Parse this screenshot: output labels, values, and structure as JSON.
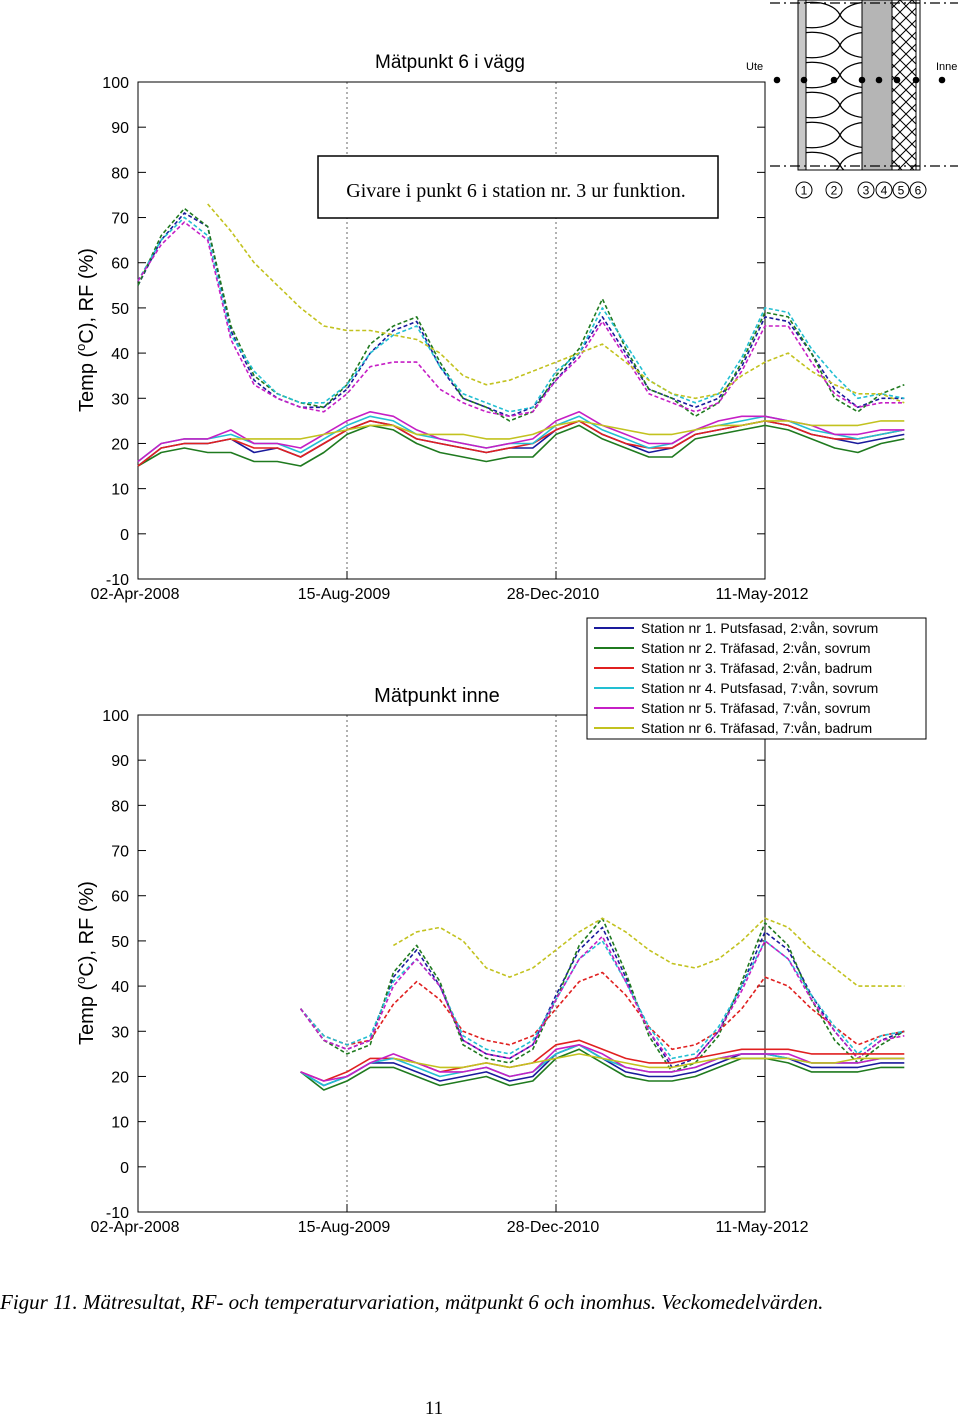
{
  "chart_data": [
    {
      "type": "line",
      "title": "Mätpunkt 6 i vägg",
      "ylabel": "Temp (oC), RF (%)",
      "ylabel_base": "Temp (",
      "ylabel_sup": "o",
      "ylabel_rest": "C), RF (%)",
      "ylim": [
        -10,
        100
      ],
      "yticks": [
        -10,
        0,
        10,
        20,
        30,
        40,
        50,
        60,
        70,
        80,
        90,
        100
      ],
      "xticks": [
        "02-Apr-2008",
        "15-Aug-2009",
        "28-Dec-2010",
        "11-May-2012"
      ],
      "annotation": "Givare i punkt 6 i station nr. 3 ur funktion.",
      "x_weeks": [
        0,
        8,
        16,
        24,
        32,
        40,
        48,
        56,
        64,
        72,
        80,
        88,
        96,
        104,
        112,
        120,
        128,
        136,
        144,
        152,
        160,
        168,
        176,
        184,
        192,
        200,
        208,
        216,
        224,
        232,
        240,
        248,
        256,
        264
      ],
      "series": [
        {
          "name": "Station nr 1 RF",
          "station": 1,
          "style": "dashed",
          "values": [
            55,
            65,
            71,
            68,
            45,
            34,
            30,
            28,
            28,
            32,
            40,
            45,
            47,
            37,
            30,
            28,
            26,
            28,
            34,
            40,
            48,
            40,
            32,
            30,
            28,
            30,
            37,
            48,
            47,
            40,
            32,
            28,
            30,
            30
          ]
        },
        {
          "name": "Station nr 2 RF",
          "station": 2,
          "style": "dashed",
          "values": [
            55,
            66,
            72,
            68,
            46,
            35,
            31,
            29,
            28,
            33,
            42,
            46,
            48,
            38,
            30,
            28,
            25,
            27,
            35,
            41,
            52,
            41,
            32,
            30,
            26,
            29,
            38,
            49,
            48,
            40,
            30,
            27,
            31,
            33
          ]
        },
        {
          "name": "Station nr 4 RF",
          "station": 4,
          "style": "dashed",
          "values": [
            56,
            65,
            70,
            66,
            44,
            36,
            31,
            29,
            29,
            33,
            40,
            44,
            46,
            37,
            31,
            29,
            27,
            28,
            36,
            40,
            50,
            42,
            34,
            31,
            29,
            31,
            39,
            50,
            49,
            41,
            35,
            30,
            31,
            30
          ]
        },
        {
          "name": "Station nr 5 RF",
          "station": 5,
          "style": "dashed",
          "values": [
            56,
            64,
            69,
            65,
            43,
            33,
            30,
            28,
            27,
            31,
            37,
            38,
            38,
            32,
            29,
            27,
            26,
            27,
            34,
            39,
            47,
            39,
            31,
            29,
            27,
            29,
            36,
            46,
            46,
            38,
            31,
            28,
            29,
            29
          ]
        },
        {
          "name": "Station nr 6 RF",
          "station": 6,
          "style": "dashed",
          "values": [
            null,
            null,
            null,
            73,
            67,
            60,
            55,
            50,
            46,
            45,
            45,
            44,
            43,
            40,
            35,
            33,
            34,
            36,
            38,
            40,
            42,
            38,
            34,
            31,
            30,
            31,
            35,
            38,
            40,
            36,
            33,
            31,
            31,
            29
          ]
        },
        {
          "name": "Station nr 1 temp",
          "station": 1,
          "style": "solid",
          "values": [
            15,
            19,
            20,
            20,
            21,
            18,
            19,
            17,
            20,
            23,
            25,
            24,
            21,
            20,
            19,
            18,
            19,
            19,
            23,
            25,
            22,
            20,
            18,
            19,
            22,
            23,
            24,
            25,
            24,
            22,
            21,
            20,
            21,
            22
          ]
        },
        {
          "name": "Station nr 2 temp",
          "station": 2,
          "style": "solid",
          "values": [
            15,
            18,
            19,
            18,
            18,
            16,
            16,
            15,
            18,
            22,
            24,
            23,
            20,
            18,
            17,
            16,
            17,
            17,
            22,
            24,
            21,
            19,
            17,
            17,
            21,
            22,
            23,
            24,
            23,
            21,
            19,
            18,
            20,
            21
          ]
        },
        {
          "name": "Station nr 3 temp",
          "station": 3,
          "style": "solid",
          "values": [
            15,
            19,
            20,
            20,
            21,
            19,
            19,
            17,
            20,
            23,
            25,
            24,
            21,
            20,
            19,
            18,
            19,
            20,
            23,
            25,
            22,
            20,
            19,
            19,
            22,
            23,
            24,
            25,
            24,
            22,
            21,
            21,
            22,
            23
          ]
        },
        {
          "name": "Station nr 4 temp",
          "station": 4,
          "style": "solid",
          "values": [
            16,
            20,
            21,
            21,
            22,
            20,
            20,
            18,
            21,
            24,
            26,
            25,
            22,
            21,
            20,
            19,
            20,
            20,
            24,
            26,
            23,
            21,
            19,
            20,
            23,
            24,
            25,
            26,
            25,
            23,
            22,
            21,
            22,
            23
          ]
        },
        {
          "name": "Station nr 5 temp",
          "station": 5,
          "style": "solid",
          "values": [
            16,
            20,
            21,
            21,
            23,
            20,
            20,
            19,
            22,
            25,
            27,
            26,
            23,
            21,
            20,
            19,
            20,
            21,
            25,
            27,
            24,
            22,
            20,
            20,
            23,
            25,
            26,
            26,
            25,
            24,
            22,
            22,
            23,
            23
          ]
        },
        {
          "name": "Station nr 6 temp",
          "station": 6,
          "style": "solid",
          "values": [
            null,
            null,
            null,
            null,
            21,
            21,
            21,
            21,
            22,
            23,
            24,
            24,
            22,
            22,
            22,
            21,
            21,
            22,
            24,
            25,
            24,
            23,
            22,
            22,
            23,
            24,
            24,
            25,
            25,
            24,
            24,
            24,
            25,
            25
          ]
        }
      ]
    },
    {
      "type": "line",
      "title": "Mätpunkt inne",
      "ylabel": "Temp (oC), RF (%)",
      "ylabel_base": "Temp (",
      "ylabel_sup": "o",
      "ylabel_rest": "C), RF (%)",
      "ylim": [
        -10,
        100
      ],
      "yticks": [
        -10,
        0,
        10,
        20,
        30,
        40,
        50,
        60,
        70,
        80,
        90,
        100
      ],
      "xticks": [
        "02-Apr-2008",
        "15-Aug-2009",
        "28-Dec-2010",
        "11-May-2012"
      ],
      "x_weeks": [
        56,
        64,
        72,
        80,
        88,
        96,
        104,
        112,
        120,
        128,
        136,
        144,
        152,
        160,
        168,
        176,
        184,
        192,
        200,
        208,
        216,
        224,
        232,
        240,
        248,
        256,
        264
      ],
      "series": [
        {
          "name": "Station nr 1 RF",
          "station": 1,
          "style": "dashed",
          "values": [
            35,
            28,
            26,
            28,
            42,
            48,
            40,
            28,
            25,
            24,
            27,
            38,
            48,
            53,
            42,
            30,
            22,
            24,
            30,
            40,
            52,
            48,
            38,
            30,
            24,
            28,
            30
          ]
        },
        {
          "name": "Station nr 2 RF",
          "station": 2,
          "style": "dashed",
          "values": [
            35,
            28,
            25,
            27,
            43,
            49,
            41,
            27,
            24,
            23,
            26,
            37,
            49,
            55,
            43,
            29,
            21,
            23,
            29,
            41,
            54,
            49,
            37,
            28,
            23,
            27,
            30
          ]
        },
        {
          "name": "Station nr 3 RF",
          "station": 3,
          "style": "dashed",
          "values": [
            35,
            29,
            27,
            28,
            36,
            41,
            37,
            30,
            28,
            27,
            29,
            35,
            41,
            43,
            38,
            31,
            26,
            27,
            30,
            35,
            42,
            40,
            35,
            31,
            27,
            29,
            30
          ]
        },
        {
          "name": "Station nr 4 RF",
          "station": 4,
          "style": "dashed",
          "values": [
            35,
            29,
            27,
            29,
            41,
            46,
            40,
            29,
            26,
            25,
            28,
            37,
            46,
            50,
            41,
            31,
            24,
            25,
            31,
            40,
            50,
            46,
            38,
            31,
            25,
            29,
            30
          ]
        },
        {
          "name": "Station nr 5 RF",
          "station": 5,
          "style": "dashed",
          "values": [
            35,
            28,
            26,
            28,
            40,
            46,
            40,
            28,
            25,
            24,
            27,
            37,
            46,
            51,
            41,
            30,
            23,
            24,
            30,
            39,
            50,
            46,
            37,
            30,
            24,
            28,
            29
          ]
        },
        {
          "name": "Station nr 6 RF",
          "station": 6,
          "style": "dashed",
          "values": [
            null,
            null,
            null,
            null,
            49,
            52,
            53,
            50,
            44,
            42,
            44,
            48,
            52,
            55,
            52,
            48,
            45,
            44,
            46,
            50,
            55,
            53,
            48,
            44,
            40,
            40,
            40
          ]
        },
        {
          "name": "Station nr 1 temp",
          "station": 1,
          "style": "solid",
          "values": [
            21,
            18,
            20,
            23,
            23,
            21,
            19,
            20,
            21,
            19,
            20,
            25,
            27,
            24,
            21,
            20,
            20,
            21,
            23,
            25,
            25,
            24,
            22,
            22,
            22,
            23,
            23
          ]
        },
        {
          "name": "Station nr 2 temp",
          "station": 2,
          "style": "solid",
          "values": [
            21,
            17,
            19,
            22,
            22,
            20,
            18,
            19,
            20,
            18,
            19,
            24,
            26,
            23,
            20,
            19,
            19,
            20,
            22,
            24,
            24,
            23,
            21,
            21,
            21,
            22,
            22
          ]
        },
        {
          "name": "Station nr 3 temp",
          "station": 3,
          "style": "solid",
          "values": [
            21,
            19,
            21,
            24,
            24,
            23,
            21,
            22,
            23,
            22,
            23,
            27,
            28,
            26,
            24,
            23,
            23,
            24,
            25,
            26,
            26,
            26,
            25,
            25,
            25,
            25,
            25
          ]
        },
        {
          "name": "Station nr 4 temp",
          "station": 4,
          "style": "solid",
          "values": [
            21,
            18,
            20,
            23,
            24,
            22,
            20,
            21,
            22,
            20,
            21,
            25,
            27,
            24,
            22,
            21,
            21,
            22,
            24,
            25,
            25,
            24,
            23,
            23,
            23,
            24,
            24
          ]
        },
        {
          "name": "Station nr 5 temp",
          "station": 5,
          "style": "solid",
          "values": [
            21,
            19,
            20,
            23,
            25,
            23,
            21,
            21,
            22,
            20,
            21,
            26,
            27,
            25,
            22,
            21,
            21,
            22,
            24,
            25,
            25,
            25,
            23,
            23,
            23,
            24,
            24
          ]
        },
        {
          "name": "Station nr 6 temp",
          "station": 6,
          "style": "solid",
          "values": [
            null,
            null,
            null,
            null,
            24,
            23,
            22,
            22,
            23,
            22,
            23,
            24,
            25,
            24,
            23,
            22,
            22,
            23,
            24,
            24,
            24,
            24,
            23,
            23,
            24,
            24,
            24
          ]
        }
      ]
    }
  ],
  "legend": {
    "placement": "right, between the two plots",
    "entries": [
      {
        "station": 1,
        "label": "Station nr 1. Putsfasad, 2:vån, sovrum",
        "color": "#1a1a9c"
      },
      {
        "station": 2,
        "label": "Station nr 2. Träfasad, 2:vån, sovrum",
        "color": "#1f7a1f"
      },
      {
        "station": 3,
        "label": "Station nr 3. Träfasad, 2:vån, badrum",
        "color": "#e02020"
      },
      {
        "station": 4,
        "label": "Station nr 4. Putsfasad, 7:vån, sovrum",
        "color": "#22bfd2"
      },
      {
        "station": 5,
        "label": "Station nr 5. Träfasad, 7:vån, sovrum",
        "color": "#c51fc5"
      },
      {
        "station": 6,
        "label": "Station nr 6. Träfasad, 7:vån, badrum",
        "color": "#c2c21f"
      }
    ]
  },
  "wall_diagram": {
    "ute_label": "Ute",
    "inne_label": "Inne",
    "points": [
      "1",
      "2",
      "3",
      "4",
      "5",
      "6"
    ]
  },
  "caption": "Figur 11. Mätresultat, RF- och temperaturvariation, mätpunkt 6 och inomhus. Veckomedelvärden.",
  "page_number": "11"
}
